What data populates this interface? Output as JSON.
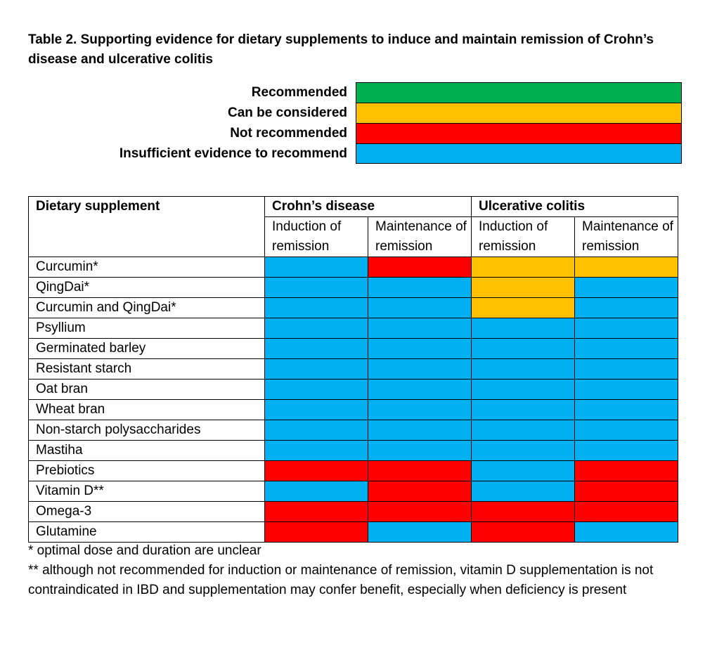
{
  "title": "Table 2. Supporting evidence for dietary supplements to induce and maintain remission of Crohn’s disease and ulcerative colitis",
  "colors": {
    "recommended": "#00B050",
    "considered": "#FFC000",
    "not_recommended": "#FF0000",
    "insufficient": "#00B0F0"
  },
  "legend": [
    {
      "label": "Recommended",
      "color": "#00B050"
    },
    {
      "label": "Can be considered",
      "color": "#FFC000"
    },
    {
      "label": "Not recommended",
      "color": "#FF0000"
    },
    {
      "label": "Insufficient evidence to recommend",
      "color": "#00B0F0"
    }
  ],
  "table": {
    "supplement_header": "Dietary supplement",
    "groups": [
      "Crohn’s disease",
      "Ulcerative colitis"
    ],
    "subheaders": [
      "Induction of remission",
      "Maintenance of remission",
      "Induction of remission",
      "Maintenance of remission"
    ],
    "rows": [
      {
        "name": "Curcumin*",
        "ratings": [
          "insufficient",
          "not_recommended",
          "considered",
          "considered"
        ]
      },
      {
        "name": "QingDai*",
        "ratings": [
          "insufficient",
          "insufficient",
          "considered",
          "insufficient"
        ]
      },
      {
        "name": "Curcumin and QingDai*",
        "ratings": [
          "insufficient",
          "insufficient",
          "considered",
          "insufficient"
        ]
      },
      {
        "name": "Psyllium",
        "ratings": [
          "insufficient",
          "insufficient",
          "insufficient",
          "insufficient"
        ]
      },
      {
        "name": "Germinated barley",
        "ratings": [
          "insufficient",
          "insufficient",
          "insufficient",
          "insufficient"
        ]
      },
      {
        "name": "Resistant starch",
        "ratings": [
          "insufficient",
          "insufficient",
          "insufficient",
          "insufficient"
        ]
      },
      {
        "name": "Oat bran",
        "ratings": [
          "insufficient",
          "insufficient",
          "insufficient",
          "insufficient"
        ]
      },
      {
        "name": "Wheat bran",
        "ratings": [
          "insufficient",
          "insufficient",
          "insufficient",
          "insufficient"
        ]
      },
      {
        "name": "Non-starch polysaccharides",
        "ratings": [
          "insufficient",
          "insufficient",
          "insufficient",
          "insufficient"
        ]
      },
      {
        "name": "Mastiha",
        "ratings": [
          "insufficient",
          "insufficient",
          "insufficient",
          "insufficient"
        ]
      },
      {
        "name": "Prebiotics",
        "ratings": [
          "not_recommended",
          "not_recommended",
          "insufficient",
          "not_recommended"
        ]
      },
      {
        "name": "Vitamin D**",
        "ratings": [
          "insufficient",
          "not_recommended",
          "insufficient",
          "not_recommended"
        ]
      },
      {
        "name": "Omega-3",
        "ratings": [
          "not_recommended",
          "not_recommended",
          "not_recommended",
          "not_recommended"
        ]
      },
      {
        "name": "Glutamine",
        "ratings": [
          "not_recommended",
          "insufficient",
          "not_recommended",
          "insufficient"
        ]
      }
    ]
  },
  "footnotes": [
    "* optimal dose and duration are unclear",
    "** although not recommended for induction or maintenance of remission, vitamin D supplementation is not contraindicated in IBD and supplementation may confer benefit, especially when deficiency is present"
  ]
}
